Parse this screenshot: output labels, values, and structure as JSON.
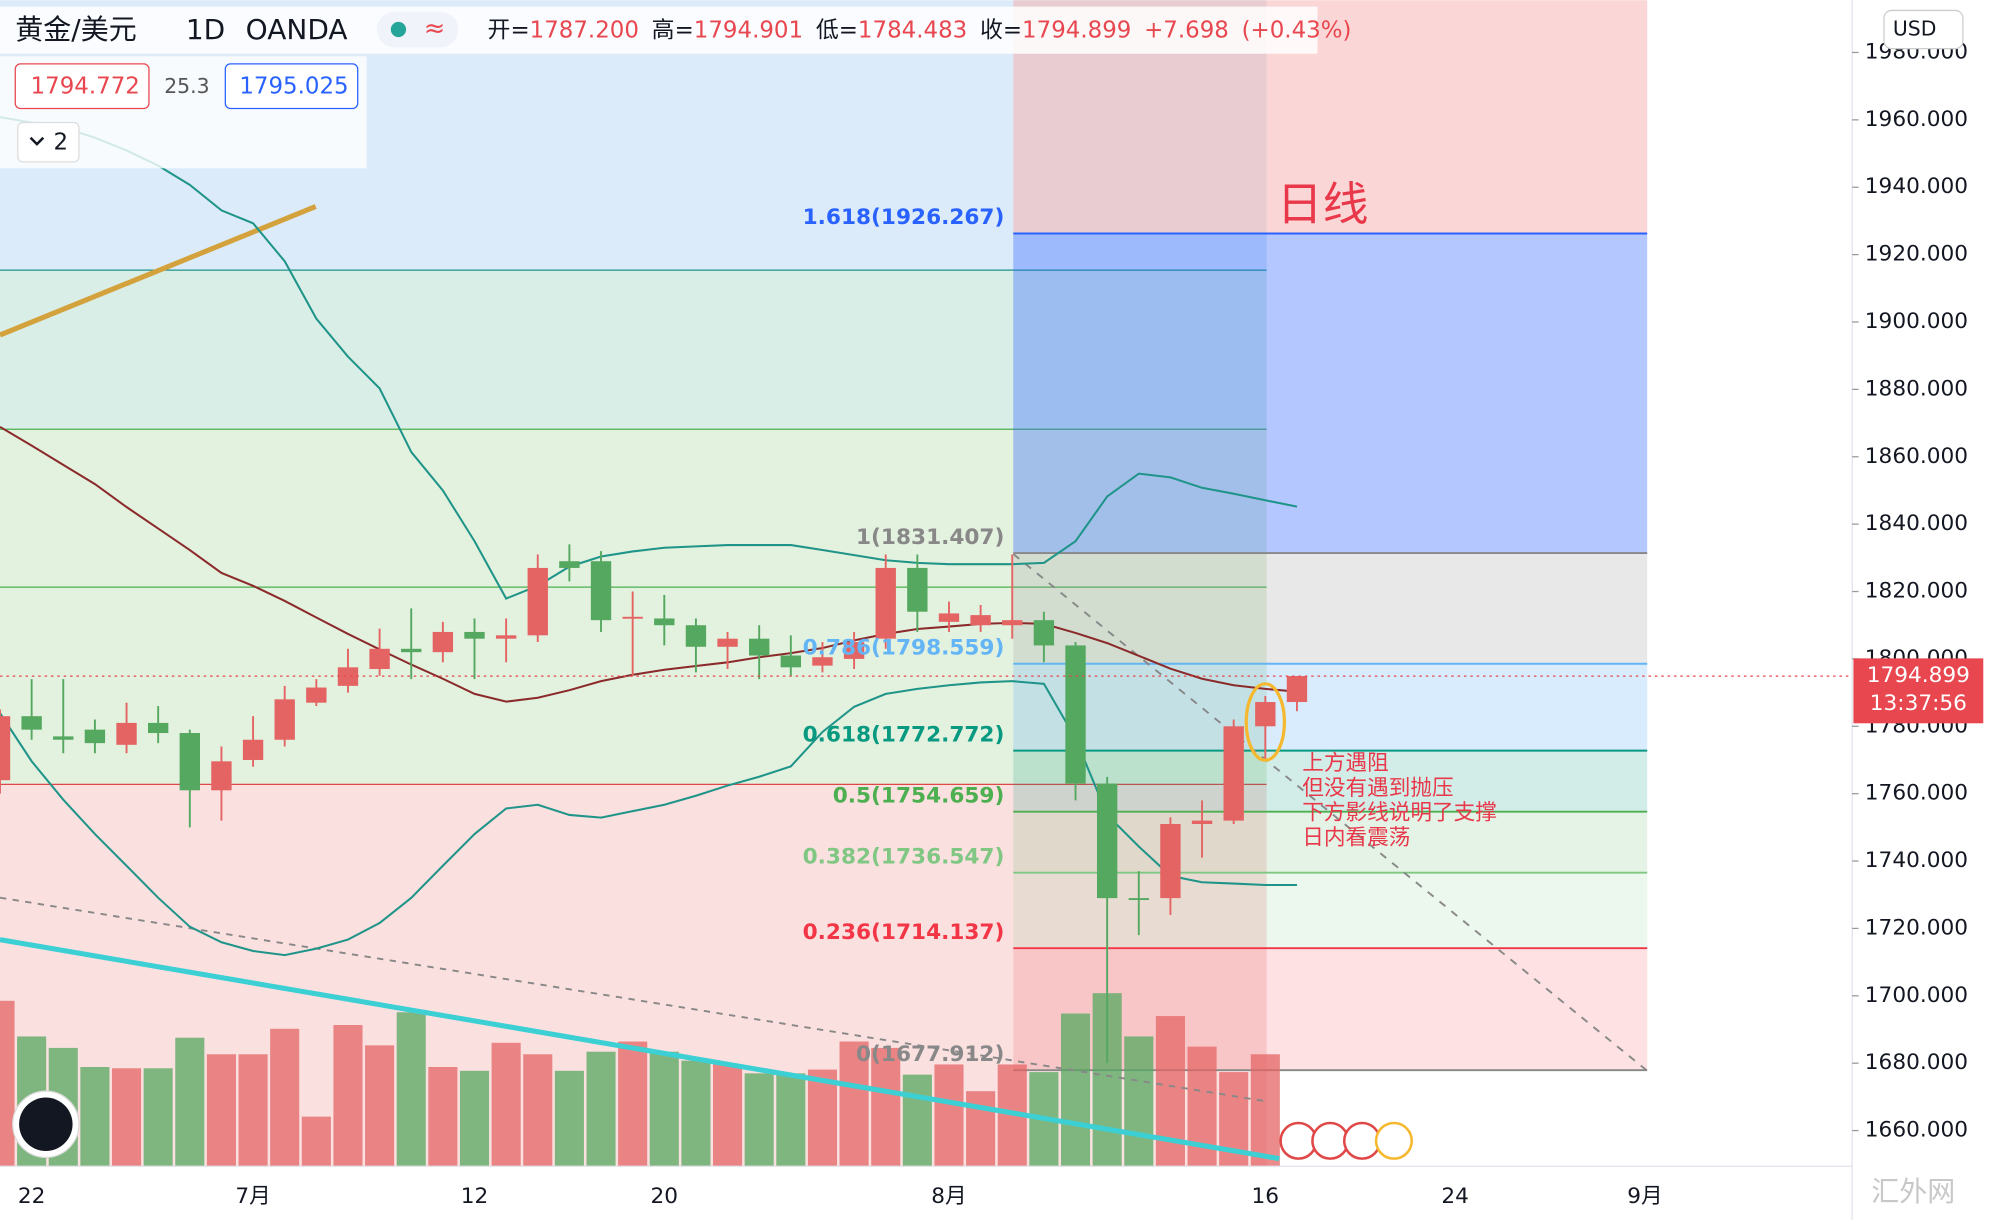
{
  "chart_data": {
    "type": "candlestick",
    "symbol": "黄金/美元",
    "interval": "1D",
    "exchange": "OANDA",
    "ohlc_legend": [
      {
        "key": "开=",
        "text": "1787.200"
      },
      {
        "key": "高=",
        "text": "1794.901"
      },
      {
        "key": "低=",
        "text": "1784.483"
      },
      {
        "key": "收=",
        "text": "1794.899"
      },
      {
        "key": "",
        "text": "+7.698"
      },
      {
        "key": "",
        "text": "(+0.43%)"
      }
    ],
    "bid": "1794.772",
    "spread": "25.3",
    "ask": "1795.025",
    "indicator_count": "2",
    "currency": "USD",
    "price_label": "1794.899",
    "countdown": "13:37:56",
    "annotation_title": "日线",
    "annotation_lines": [
      "上方遇阻",
      "但没有遇到抛压",
      "下方影线说明了支撑",
      "日内看震荡"
    ],
    "watermark": "汇外网",
    "up_color": "#e46464",
    "down_color": "#55a860",
    "categories": [
      null,
      "22",
      null,
      null,
      null,
      null,
      null,
      null,
      "7月",
      null,
      null,
      null,
      null,
      null,
      null,
      "12",
      null,
      null,
      null,
      null,
      null,
      "20",
      null,
      null,
      null,
      null,
      null,
      null,
      null,
      null,
      "8月",
      null,
      null,
      null,
      null,
      null,
      null,
      null,
      null,
      null,
      "16",
      null,
      null,
      null,
      null,
      null,
      "24",
      null,
      null,
      null,
      null,
      null,
      "9月"
    ],
    "open": [
      1764,
      1783,
      1777,
      1779,
      1774.5,
      1781,
      1778,
      1761,
      1770,
      1776,
      1787,
      1792,
      1797,
      1803,
      1802,
      1808,
      1806,
      1807,
      1829,
      1829,
      1812,
      1812,
      1810,
      1803.6,
      1806,
      1801,
      1798,
      1800,
      1806,
      1827,
      1811,
      1810,
      1810,
      1811.5,
      1804,
      1763,
      1729,
      1729,
      1751,
      1752,
      1780,
      1787.2,
      null,
      null,
      null,
      null,
      null,
      null,
      null,
      null,
      null,
      null,
      null
    ],
    "high": [
      1785,
      1794,
      1794,
      1782,
      1787,
      1786,
      1779,
      1774,
      1783,
      1792,
      1794,
      1803,
      1809,
      1815,
      1811,
      1812,
      1812,
      1831,
      1834,
      1832,
      1820,
      1819,
      1812,
      1808,
      1810,
      1807,
      1805,
      1808,
      1831,
      1831,
      1817,
      1816,
      1831,
      1814,
      1805,
      1765,
      1737,
      1753,
      1758,
      1782,
      1789,
      1794.901,
      null,
      null,
      null,
      null,
      null,
      null,
      null,
      null,
      null,
      null,
      null
    ],
    "low": [
      1760,
      1776,
      1772,
      1772,
      1772,
      1775,
      1750,
      1752,
      1768,
      1774,
      1786,
      1790,
      1795,
      1794,
      1799,
      1794,
      1799,
      1805,
      1823,
      1808,
      1795,
      1804,
      1796,
      1797,
      1794,
      1795,
      1796,
      1797,
      1803,
      1808,
      1808,
      1808,
      1806,
      1799,
      1758,
      1680,
      1718,
      1724,
      1741,
      1751,
      1770,
      1784.483,
      null,
      null,
      null,
      null,
      null,
      null,
      null,
      null,
      null,
      null,
      null
    ],
    "close": [
      1783,
      1779,
      1776,
      1775,
      1781,
      1778,
      1761,
      1769.6,
      1776,
      1788,
      1791.5,
      1797.5,
      1803,
      1802,
      1808,
      1806,
      1807,
      1827,
      1827,
      1811.5,
      1812.5,
      1810,
      1803.6,
      1806,
      1801,
      1797.5,
      1800.5,
      1805,
      1827,
      1814,
      1813.5,
      1813,
      1811.5,
      1804,
      1763,
      1729,
      1728.5,
      1751,
      1752,
      1780,
      1787.2,
      1794.899,
      null,
      null,
      null,
      null,
      null,
      null,
      null,
      null,
      null,
      null,
      null
    ],
    "volume": [
      130,
      102,
      93,
      78,
      77,
      77,
      101,
      88,
      88,
      108,
      39,
      111,
      95,
      121,
      78,
      75,
      97,
      88,
      75,
      90,
      98,
      90,
      83,
      80,
      73,
      73,
      76,
      98,
      93,
      72,
      80,
      59,
      80,
      74,
      120,
      136,
      102,
      118,
      94,
      74,
      88,
      null,
      null,
      null,
      null,
      null,
      null,
      null,
      null,
      null,
      null,
      null,
      null
    ],
    "overlays": [
      {
        "color": "#1f9488",
        "values": [
          1960.8,
          1959.2,
          1957.7,
          1954.7,
          1950.9,
          1946.4,
          1940.7,
          1933.1,
          1929.3,
          1918.0,
          1901.0,
          1889.7,
          1880.3,
          1861.4,
          1850.0,
          1834.9,
          1817.9,
          1821.7,
          1827.4,
          1830.4,
          1831.9,
          1833.0,
          1833.4,
          1833.8,
          1833.8,
          1833.8,
          1832.3,
          1830.8,
          1829.3,
          1828.5,
          1828.1,
          1828.1,
          1828.1,
          1828.5,
          1834.9,
          1848.2,
          1855.0,
          1853.9,
          1850.8,
          1849.0,
          1847.1,
          1845.2,
          null,
          null,
          null,
          null,
          null,
          null,
          null,
          null,
          null,
          null,
          null
        ]
      },
      {
        "color": "#8b2a2a",
        "values": [
          1868.9,
          1863.3,
          1857.6,
          1851.9,
          1845.1,
          1838.7,
          1832.3,
          1825.5,
          1821.7,
          1817.2,
          1812.3,
          1807.4,
          1802.8,
          1798.3,
          1794.1,
          1789.6,
          1787.3,
          1788.5,
          1790.7,
          1793.4,
          1795.3,
          1796.8,
          1797.9,
          1799.0,
          1800.5,
          1801.7,
          1803.2,
          1805.5,
          1807.4,
          1808.9,
          1809.6,
          1810.4,
          1810.7,
          1810.4,
          1807.7,
          1804.7,
          1800.9,
          1797.1,
          1794.1,
          1792.2,
          1791.1,
          1790.3,
          null,
          null,
          null,
          null,
          null,
          null,
          null,
          null,
          null,
          null,
          null
        ]
      },
      {
        "color": "#1f9488",
        "values": [
          1783.9,
          1769.6,
          1758.2,
          1748.0,
          1738.6,
          1729.1,
          1720.5,
          1715.9,
          1713.3,
          1712.1,
          1714.0,
          1716.7,
          1721.6,
          1729.1,
          1738.6,
          1748.0,
          1755.6,
          1756.7,
          1753.7,
          1752.9,
          1754.8,
          1756.7,
          1759.4,
          1762.4,
          1765.0,
          1768.1,
          1778.3,
          1785.8,
          1789.6,
          1791.1,
          1792.2,
          1793.0,
          1793.4,
          1792.6,
          1776.4,
          1753.7,
          1744.3,
          1735.6,
          1733.7,
          1733.3,
          1732.9,
          1732.9,
          null,
          null,
          null,
          null,
          null,
          null,
          null,
          null,
          null,
          null,
          null
        ]
      }
    ],
    "fib": [
      {
        "label": "1.618(1926.267)",
        "value": 1926.267,
        "color": "#2962ff"
      },
      {
        "label": "1(1831.407)",
        "value": 1831.407,
        "color": "#888888"
      },
      {
        "label": "0.786(1798.559)",
        "value": 1798.559,
        "color": "#64b5f6"
      },
      {
        "label": "0.618(1772.772)",
        "value": 1772.772,
        "color": "#089981"
      },
      {
        "label": "0.5(1754.659)",
        "value": 1754.659,
        "color": "#4caf50"
      },
      {
        "label": "0.382(1736.547)",
        "value": 1736.547,
        "color": "#81c784"
      },
      {
        "label": "0.236(1714.137)",
        "value": 1714.137,
        "color": "#f23645"
      },
      {
        "label": "0(1677.912)",
        "value": 1677.912,
        "color": "#888888"
      }
    ],
    "ylim": [
      1649.4,
      1995.5
    ],
    "yticks": [
      {
        "value": 1660,
        "label": "1660.000"
      },
      {
        "value": 1680,
        "label": "1680.000"
      },
      {
        "value": 1700,
        "label": "1700.000"
      },
      {
        "value": 1720,
        "label": "1720.000"
      },
      {
        "value": 1740,
        "label": "1740.000"
      },
      {
        "value": 1760,
        "label": "1760.000"
      },
      {
        "value": 1780,
        "label": "1780.000"
      },
      {
        "value": 1800,
        "label": "1800.000"
      },
      {
        "value": 1820,
        "label": "1820.000"
      },
      {
        "value": 1840,
        "label": "1840.000"
      },
      {
        "value": 1860,
        "label": "1860.000"
      },
      {
        "value": 1880,
        "label": "1880.000"
      },
      {
        "value": 1900,
        "label": "1900.000"
      },
      {
        "value": 1920,
        "label": "1920.000"
      },
      {
        "value": 1940,
        "label": "1940.000"
      },
      {
        "value": 1960,
        "label": "1960.000"
      },
      {
        "value": 1980,
        "label": "1980.000"
      }
    ]
  }
}
